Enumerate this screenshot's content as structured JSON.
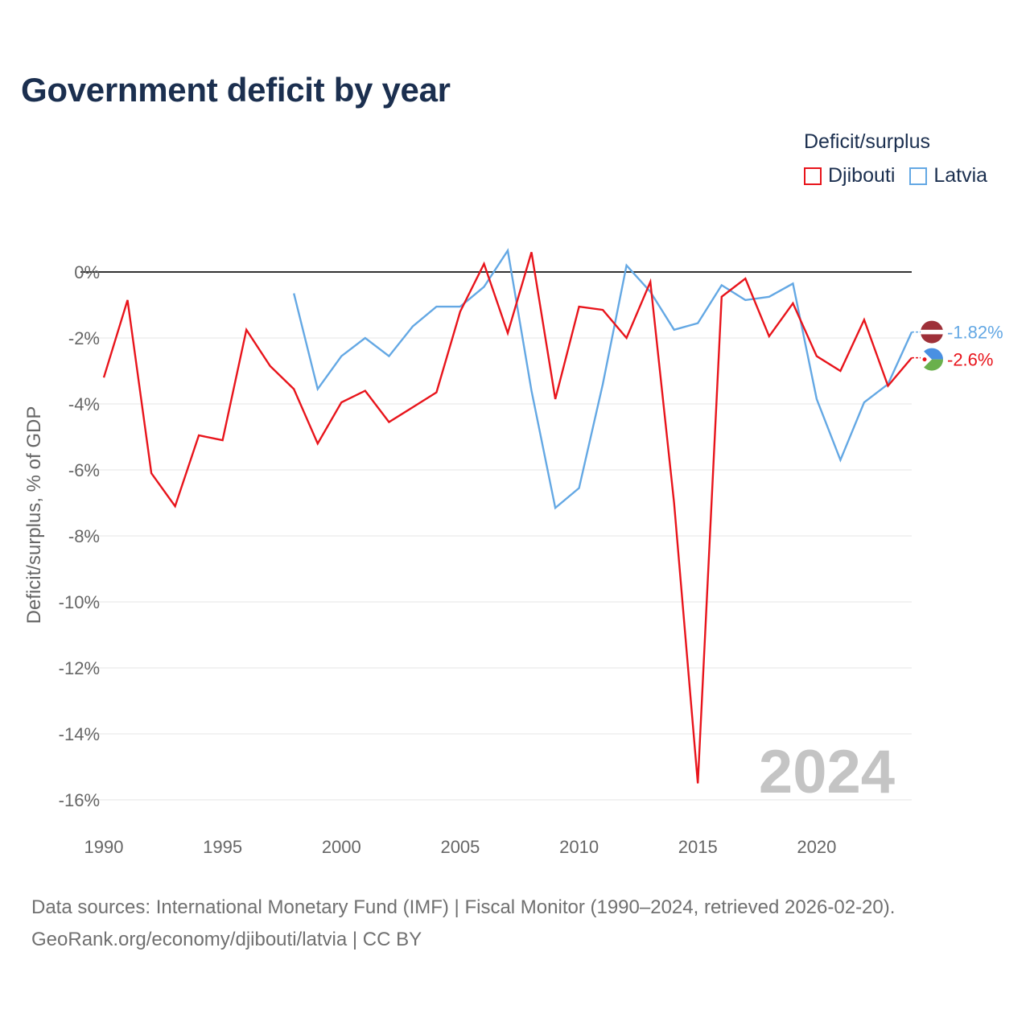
{
  "title": "Government deficit by year",
  "legend": {
    "title": "Deficit/surplus",
    "items": [
      {
        "label": "Djibouti",
        "color": "#e8141b"
      },
      {
        "label": "Latvia",
        "color": "#64a8e4"
      }
    ]
  },
  "source": {
    "line1": "Data sources: International Monetary Fund (IMF) | Fiscal Monitor (1990–2024, retrieved 2026-02-20).",
    "line2": "GeoRank.org/economy/djibouti/latvia | CC BY"
  },
  "chart_data": {
    "type": "line",
    "title": "Government deficit by year",
    "ylabel": "Deficit/surplus, % of GDP",
    "xlabel": "",
    "xlim": [
      1990,
      2024
    ],
    "ylim": [
      -16.5,
      1
    ],
    "x_ticks": [
      1990,
      1995,
      2000,
      2005,
      2010,
      2015,
      2020
    ],
    "y_ticks": [
      0,
      -2,
      -4,
      -6,
      -8,
      -10,
      -12,
      -14,
      -16
    ],
    "y_tick_labels": [
      "0%",
      "-2%",
      "-4%",
      "-6%",
      "-8%",
      "-10%",
      "-12%",
      "-14%",
      "-16%"
    ],
    "x_tick_labels": [
      "1990",
      "1995",
      "2000",
      "2005",
      "2010",
      "2015",
      "2020"
    ],
    "year_stamp": "2024",
    "series": [
      {
        "name": "Djibouti",
        "color": "#e8141b",
        "end_label": "-2.6%",
        "x": [
          1990,
          1991,
          1992,
          1993,
          1994,
          1995,
          1996,
          1997,
          1998,
          1999,
          2000,
          2001,
          2002,
          2003,
          2004,
          2005,
          2006,
          2007,
          2008,
          2009,
          2010,
          2011,
          2012,
          2013,
          2014,
          2015,
          2016,
          2017,
          2018,
          2019,
          2020,
          2021,
          2022,
          2023,
          2024
        ],
        "y": [
          -3.2,
          -0.85,
          -6.1,
          -7.1,
          -4.95,
          -5.1,
          -1.75,
          -2.85,
          -3.55,
          -5.2,
          -3.95,
          -3.6,
          -4.55,
          -4.1,
          -3.65,
          -1.2,
          0.25,
          -1.85,
          0.6,
          -3.85,
          -1.05,
          -1.15,
          -2.0,
          -0.3,
          -7.0,
          -15.5,
          -0.75,
          -0.2,
          -1.95,
          -0.95,
          -2.55,
          -3.0,
          -1.45,
          -3.45,
          -2.6
        ]
      },
      {
        "name": "Latvia",
        "color": "#64a8e4",
        "end_label": "-1.82%",
        "x": [
          1998,
          1999,
          2000,
          2001,
          2002,
          2003,
          2004,
          2005,
          2006,
          2007,
          2008,
          2009,
          2010,
          2011,
          2012,
          2013,
          2014,
          2015,
          2016,
          2017,
          2018,
          2019,
          2020,
          2021,
          2022,
          2023,
          2024
        ],
        "y": [
          -0.65,
          -3.55,
          -2.55,
          -2.0,
          -2.55,
          -1.65,
          -1.05,
          -1.05,
          -0.45,
          0.65,
          -3.6,
          -7.15,
          -6.55,
          -3.4,
          0.2,
          -0.6,
          -1.75,
          -1.55,
          -0.4,
          -0.85,
          -0.75,
          -0.35,
          -3.85,
          -5.7,
          -3.95,
          -3.4,
          -1.82
        ]
      }
    ]
  }
}
